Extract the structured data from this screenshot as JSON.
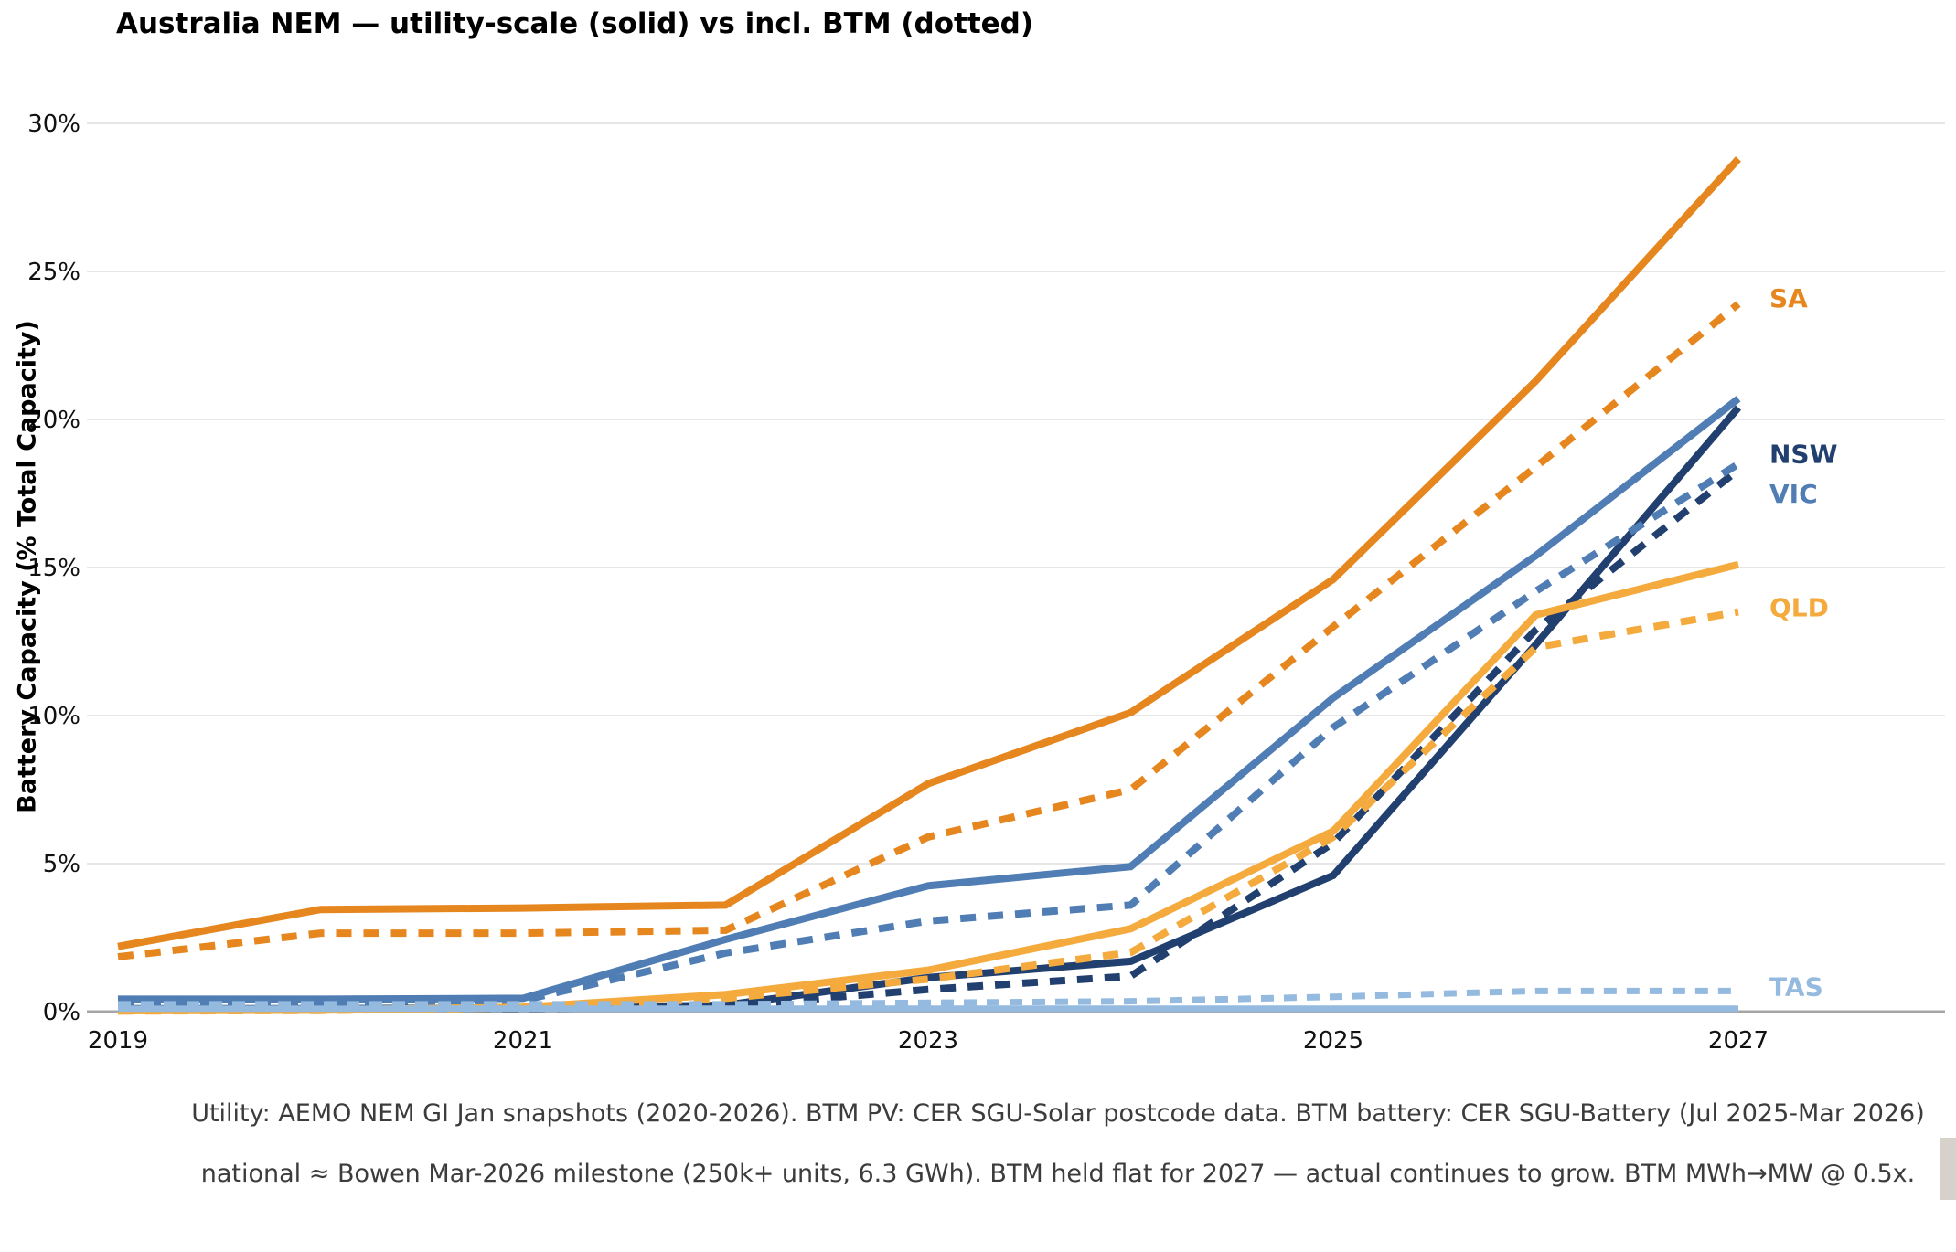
{
  "title": "Australia NEM — utility-scale (solid) vs incl. BTM (dotted)",
  "y_axis": {
    "label": "Battery Capacity (% Total Capacity)",
    "ticks": [
      {
        "label": "0%",
        "value": 0
      },
      {
        "label": "5%",
        "value": 5
      },
      {
        "label": "10%",
        "value": 10
      },
      {
        "label": "15%",
        "value": 15
      },
      {
        "label": "20%",
        "value": 20
      },
      {
        "label": "25%",
        "value": 25
      },
      {
        "label": "30%",
        "value": 30
      }
    ]
  },
  "x_axis": {
    "ticks": [
      {
        "label": "2019",
        "value": 2019
      },
      {
        "label": "2021",
        "value": 2021
      },
      {
        "label": "2023",
        "value": 2023
      },
      {
        "label": "2025",
        "value": 2025
      },
      {
        "label": "2027",
        "value": 2027
      }
    ]
  },
  "caption": {
    "line1": "Utility: AEMO NEM GI Jan snapshots (2020-2026). BTM PV: CER SGU-Solar postcode data. BTM battery: CER SGU-Battery (Jul 2025-Mar 2026)",
    "line2": "national ≈ Bowen Mar-2026 milestone (250k+ units, 6.3 GWh). BTM held flat for 2027 — actual continues to grow. BTM MWh→MW @ 0.5x."
  },
  "legend_note": {
    "solid": "utility-scale",
    "dotted": "incl. BTM"
  },
  "colors": {
    "SA": "#E6861F",
    "NSW": "#21406F",
    "VIC": "#4F7DB4",
    "QLD": "#F4AA3C",
    "TAS": "#95BADF",
    "grid": "#DEDEDE",
    "axis": "#A6A6A6",
    "tick_text": "#111111",
    "caption_text": "#3C3C3C"
  },
  "chart_data": {
    "type": "line",
    "title": "Australia NEM — utility-scale (solid) vs incl. BTM (dotted)",
    "xlabel": "",
    "ylabel": "Battery Capacity (% Total Capacity)",
    "x": [
      2019,
      2020,
      2021,
      2022,
      2023,
      2024,
      2025,
      2026,
      2027
    ],
    "xlim": [
      2019,
      2027
    ],
    "ylim": [
      0,
      30
    ],
    "grid": "horizontal",
    "legend_position": "right-end-labels",
    "series": [
      {
        "name": "SA utility-scale",
        "state": "SA",
        "style": "solid",
        "values": [
          2.2,
          3.45,
          3.5,
          3.6,
          7.7,
          10.1,
          14.6,
          21.3,
          28.8
        ]
      },
      {
        "name": "SA incl. BTM",
        "state": "SA",
        "style": "dotted",
        "values": [
          1.85,
          2.65,
          2.65,
          2.75,
          5.9,
          7.5,
          13.0,
          18.4,
          23.9
        ]
      },
      {
        "name": "NSW utility-scale",
        "state": "NSW",
        "style": "solid",
        "values": [
          0.1,
          0.1,
          0.12,
          0.22,
          1.15,
          1.7,
          4.6,
          12.4,
          20.4
        ]
      },
      {
        "name": "NSW incl. BTM",
        "state": "NSW",
        "style": "dotted",
        "values": [
          0.08,
          0.08,
          0.1,
          0.18,
          0.75,
          1.2,
          5.7,
          12.9,
          18.3
        ]
      },
      {
        "name": "VIC utility-scale",
        "state": "VIC",
        "style": "solid",
        "values": [
          0.42,
          0.42,
          0.45,
          2.44,
          4.25,
          4.9,
          10.6,
          15.4,
          20.7
        ]
      },
      {
        "name": "VIC incl. BTM",
        "state": "VIC",
        "style": "dotted",
        "values": [
          0.33,
          0.33,
          0.38,
          1.98,
          3.06,
          3.6,
          9.6,
          14.2,
          18.5
        ]
      },
      {
        "name": "QLD utility-scale",
        "state": "QLD",
        "style": "solid",
        "values": [
          0.03,
          0.05,
          0.15,
          0.58,
          1.4,
          2.8,
          6.1,
          13.4,
          15.1
        ]
      },
      {
        "name": "QLD incl. BTM",
        "state": "QLD",
        "style": "dotted",
        "values": [
          0.02,
          0.04,
          0.12,
          0.45,
          1.1,
          2.0,
          5.9,
          12.3,
          13.5
        ]
      },
      {
        "name": "TAS utility-scale",
        "state": "TAS",
        "style": "solid",
        "values": [
          0.1,
          0.1,
          0.1,
          0.1,
          0.1,
          0.1,
          0.1,
          0.1,
          0.1
        ]
      },
      {
        "name": "TAS incl. BTM",
        "state": "TAS",
        "style": "dotted",
        "values": [
          0.25,
          0.25,
          0.25,
          0.25,
          0.3,
          0.35,
          0.5,
          0.7,
          0.7
        ]
      }
    ],
    "end_labels": [
      {
        "text": "SA",
        "y_pct": 24.1
      },
      {
        "text": "NSW",
        "y_pct": 18.85
      },
      {
        "text": "VIC",
        "y_pct": 17.5
      },
      {
        "text": "QLD",
        "y_pct": 13.65
      },
      {
        "text": "TAS",
        "y_pct": 0.85
      }
    ]
  }
}
